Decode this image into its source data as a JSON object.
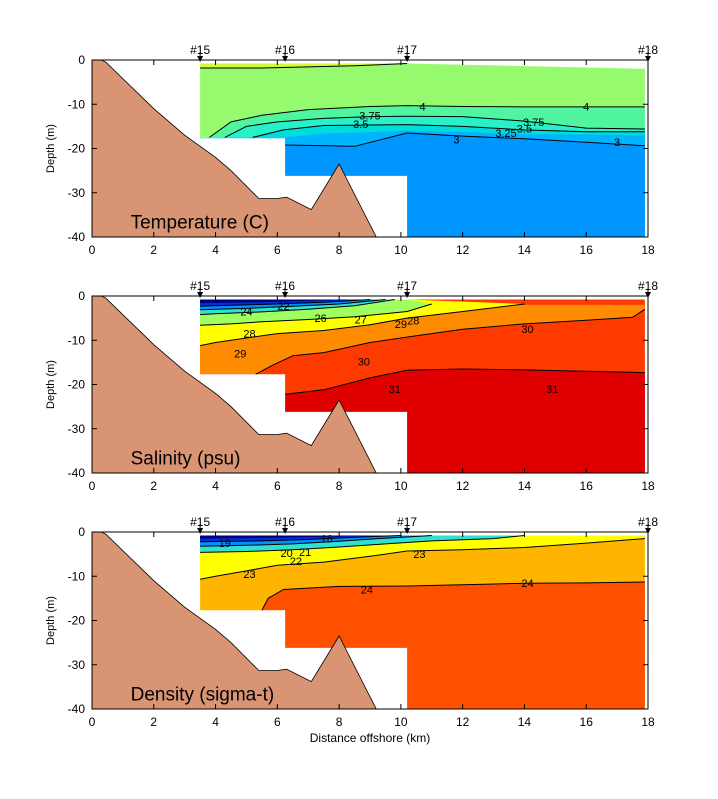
{
  "chart_data": [
    {
      "type": "section-contour",
      "title": "Temperature (C)",
      "ylabel": "Depth (m)",
      "xlabel": "",
      "xlim": [
        0,
        18
      ],
      "ylim": [
        -40,
        0
      ],
      "x_ticks": [
        0,
        2,
        4,
        6,
        8,
        10,
        12,
        14,
        16,
        18
      ],
      "y_ticks": [
        0,
        -10,
        -20,
        -30,
        -40
      ],
      "stations": [
        {
          "label": "#15",
          "x": 3.5
        },
        {
          "label": "#16",
          "x": 6.25
        },
        {
          "label": "#17",
          "x": 10.2
        },
        {
          "label": "#18",
          "x": 18
        }
      ],
      "bands": [
        {
          "name": "≤ 3",
          "color": "#0096ff"
        },
        {
          "name": "3 - 3.25",
          "color": "#00b4ff"
        },
        {
          "name": "3.25 - 3.5",
          "color": "#00dcdc"
        },
        {
          "name": "3.5 - 3.75",
          "color": "#28f0c8"
        },
        {
          "name": "3.75 - 4",
          "color": "#50f5a0"
        },
        {
          "name": "4 - 5",
          "color": "#96fa6e"
        },
        {
          "name": "> 5",
          "color": "#d2fa3c"
        }
      ],
      "contour_labels": [
        {
          "text": "4",
          "x": 10.7,
          "y": -10.5
        },
        {
          "text": "4",
          "x": 16.0,
          "y": -10.5
        },
        {
          "text": "3.75",
          "x": 9.0,
          "y": -12.5
        },
        {
          "text": "3.75",
          "x": 14.3,
          "y": -14.0
        },
        {
          "text": "3.5",
          "x": 8.7,
          "y": -14.5
        },
        {
          "text": "3.5",
          "x": 14.0,
          "y": -15.5
        },
        {
          "text": "3.25",
          "x": 13.4,
          "y": -16.5
        },
        {
          "text": "3",
          "x": 11.8,
          "y": -18.0
        },
        {
          "text": "3",
          "x": 17.0,
          "y": -18.5
        }
      ]
    },
    {
      "type": "section-contour",
      "title": "Salinity (psu)",
      "ylabel": "Depth (m)",
      "xlabel": "",
      "xlim": [
        0,
        18
      ],
      "ylim": [
        -40,
        0
      ],
      "x_ticks": [
        0,
        2,
        4,
        6,
        8,
        10,
        12,
        14,
        16,
        18
      ],
      "y_ticks": [
        0,
        -10,
        -20,
        -30,
        -40
      ],
      "stations": [
        {
          "label": "#15",
          "x": 3.5
        },
        {
          "label": "#16",
          "x": 6.25
        },
        {
          "label": "#17",
          "x": 10.2
        },
        {
          "label": "#18",
          "x": 18
        }
      ],
      "bands": [
        {
          "name": "< 24",
          "color": "#000080"
        },
        {
          "name": "24 - 25",
          "color": "#0030d0"
        },
        {
          "name": "25 - 26",
          "color": "#0090ff"
        },
        {
          "name": "26 - 27",
          "color": "#30e0d0"
        },
        {
          "name": "27 - 28",
          "color": "#a0ff60"
        },
        {
          "name": "28 - 29",
          "color": "#ffff00"
        },
        {
          "name": "29 - 30",
          "color": "#ff8c00"
        },
        {
          "name": "30 - 31",
          "color": "#ff3a00"
        },
        {
          "name": "> 31",
          "color": "#e00000"
        }
      ],
      "contour_labels": [
        {
          "text": "24",
          "x": 5.0,
          "y": -3.5
        },
        {
          "text": "22",
          "x": 6.2,
          "y": -2.3
        },
        {
          "text": "26",
          "x": 7.4,
          "y": -5.0
        },
        {
          "text": "27",
          "x": 8.7,
          "y": -5.3
        },
        {
          "text": "28",
          "x": 5.1,
          "y": -8.5
        },
        {
          "text": "28",
          "x": 10.4,
          "y": -5.5
        },
        {
          "text": "29",
          "x": 10.0,
          "y": -6.3
        },
        {
          "text": "29",
          "x": 4.8,
          "y": -13.0
        },
        {
          "text": "30",
          "x": 8.8,
          "y": -14.8
        },
        {
          "text": "30",
          "x": 14.1,
          "y": -7.5
        },
        {
          "text": "31",
          "x": 9.8,
          "y": -21.0
        },
        {
          "text": "31",
          "x": 14.9,
          "y": -21.0
        }
      ]
    },
    {
      "type": "section-contour",
      "title": "Density (sigma-t)",
      "ylabel": "Depth (m)",
      "xlabel": "Distance offshore (km)",
      "xlim": [
        0,
        18
      ],
      "ylim": [
        -40,
        0
      ],
      "x_ticks": [
        0,
        2,
        4,
        6,
        8,
        10,
        12,
        14,
        16,
        18
      ],
      "y_ticks": [
        0,
        -10,
        -20,
        -30,
        -40
      ],
      "stations": [
        {
          "label": "#15",
          "x": 3.5
        },
        {
          "label": "#16",
          "x": 6.25
        },
        {
          "label": "#17",
          "x": 10.2
        },
        {
          "label": "#18",
          "x": 18
        }
      ],
      "bands": [
        {
          "name": "< 19",
          "color": "#000080"
        },
        {
          "name": "19 - 20",
          "color": "#0030d0"
        },
        {
          "name": "20 - 21",
          "color": "#0090ff"
        },
        {
          "name": "21 - 22",
          "color": "#30e0d0"
        },
        {
          "name": "22 - 23",
          "color": "#ffff00"
        },
        {
          "name": "23 - 24",
          "color": "#ffb400"
        },
        {
          "name": "> 24",
          "color": "#ff5000"
        }
      ],
      "contour_labels": [
        {
          "text": "19",
          "x": 4.3,
          "y": -2.5
        },
        {
          "text": "16",
          "x": 7.6,
          "y": -1.5
        },
        {
          "text": "20",
          "x": 6.3,
          "y": -4.7
        },
        {
          "text": "21",
          "x": 6.9,
          "y": -4.5
        },
        {
          "text": "22",
          "x": 6.6,
          "y": -6.5
        },
        {
          "text": "23",
          "x": 10.6,
          "y": -5.0
        },
        {
          "text": "23",
          "x": 5.1,
          "y": -9.5
        },
        {
          "text": "24",
          "x": 8.9,
          "y": -13.0
        },
        {
          "text": "24",
          "x": 14.1,
          "y": -11.5
        }
      ]
    }
  ],
  "colors": {
    "land": "#d99473",
    "contour_line": "#000000",
    "no_data": "#ffffff"
  }
}
